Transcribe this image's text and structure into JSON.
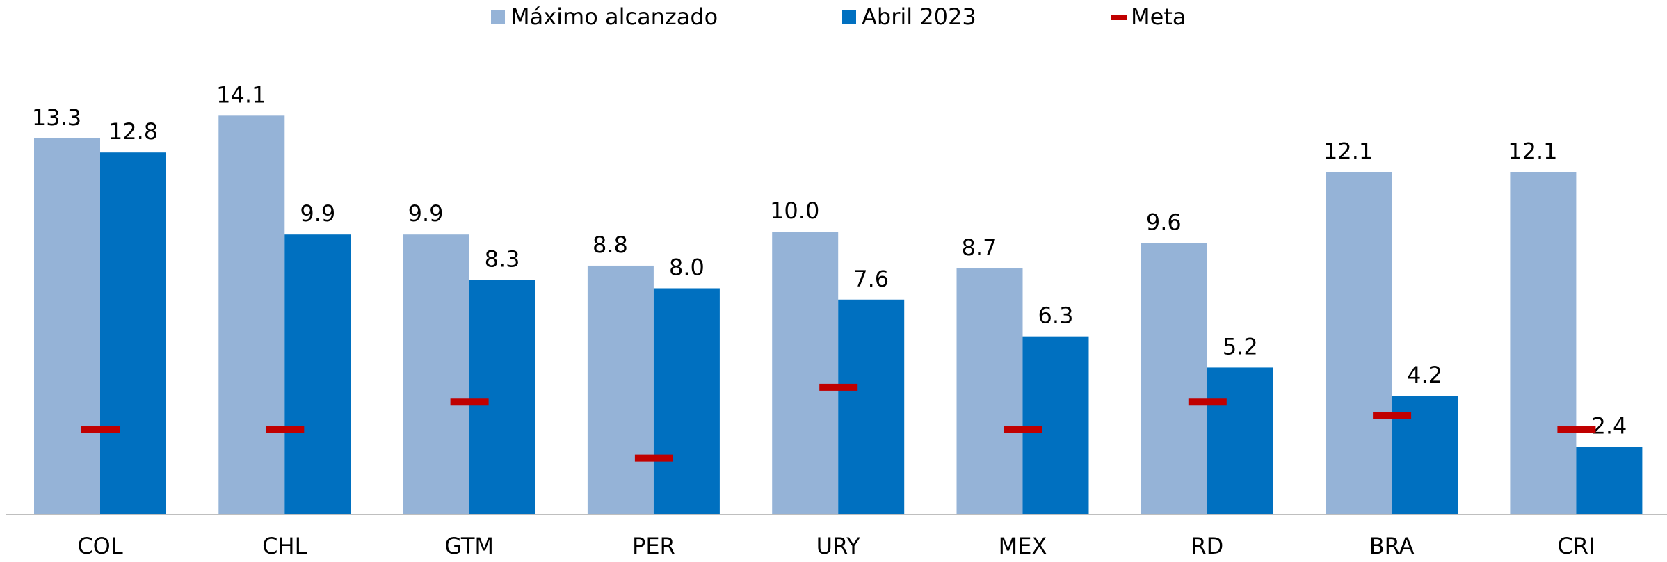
{
  "chart_data": {
    "type": "bar",
    "categories": [
      "COL",
      "CHL",
      "GTM",
      "PER",
      "URY",
      "MEX",
      "RD",
      "BRA",
      "CRI"
    ],
    "series": [
      {
        "name": "Máximo alcanzado",
        "color": "#95b3d7",
        "values": [
          13.3,
          14.1,
          9.9,
          8.8,
          10.0,
          8.7,
          9.6,
          12.1,
          12.1
        ],
        "value_labels": [
          "13.3",
          "14.1",
          "9.9",
          "8.8",
          "10.0",
          "8.7",
          "9.6",
          "12.1",
          "12.1"
        ]
      },
      {
        "name": "Abril 2023",
        "color": "#0070c0",
        "values": [
          12.8,
          9.9,
          8.3,
          8.0,
          7.6,
          6.3,
          5.2,
          4.2,
          2.4
        ],
        "value_labels": [
          "12.8",
          "9.9",
          "8.3",
          "8.0",
          "7.6",
          "6.3",
          "5.2",
          "4.2",
          "2.4"
        ]
      },
      {
        "name": "Meta",
        "color": "#c00000",
        "marker": "dash",
        "values": [
          3.0,
          3.0,
          4.0,
          2.0,
          4.5,
          3.0,
          4.0,
          3.5,
          3.0
        ]
      }
    ],
    "ylim": [
      0,
      16
    ],
    "legend": "top"
  }
}
